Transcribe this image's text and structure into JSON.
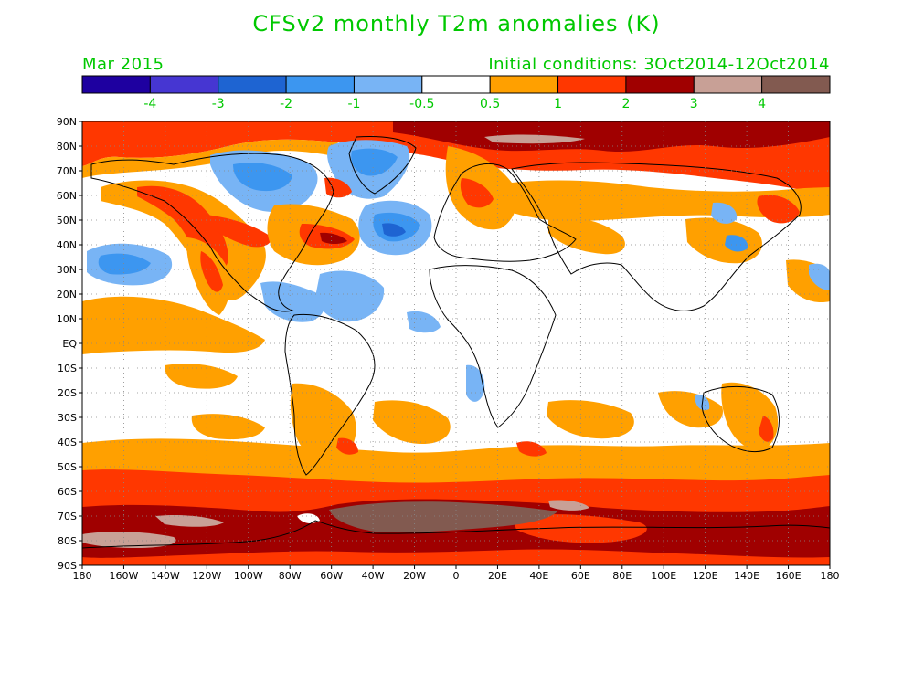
{
  "title": "CFSv2 monthly T2m anomalies (K)",
  "valid_month": "Mar 2015",
  "initial_conditions": "Initial conditions: 3Oct2014-12Oct2014",
  "colorbar": {
    "colors": [
      "#1e00a0",
      "#4636d2",
      "#1e64d2",
      "#3c96f0",
      "#78b4f5",
      "#ffffff",
      "#ffa000",
      "#ff3700",
      "#a00000",
      "#c8a096",
      "#825a50"
    ],
    "labels": [
      "-4",
      "-3",
      "-2",
      "-1",
      "-0.5",
      "0.5",
      "1",
      "2",
      "3",
      "4"
    ]
  },
  "lat_labels": [
    "90N",
    "80N",
    "70N",
    "60N",
    "50N",
    "40N",
    "30N",
    "20N",
    "10N",
    "EQ",
    "10S",
    "20S",
    "30S",
    "40S",
    "50S",
    "60S",
    "70S",
    "80S",
    "90S"
  ],
  "lon_labels": [
    "180",
    "160W",
    "140W",
    "120W",
    "100W",
    "80W",
    "60W",
    "40W",
    "20W",
    "0",
    "20E",
    "40E",
    "60E",
    "80E",
    "100E",
    "120E",
    "140E",
    "160E",
    "180"
  ],
  "label_color": "#00c800"
}
